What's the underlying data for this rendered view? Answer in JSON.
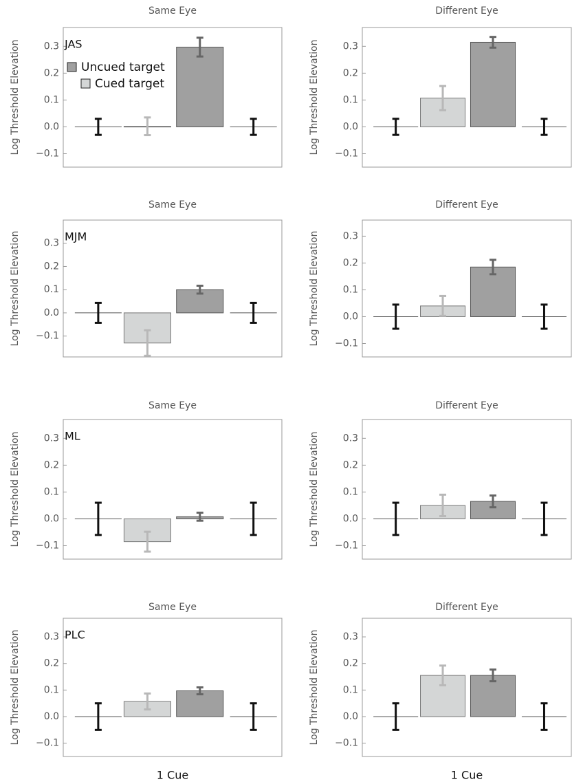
{
  "chart_data": [
    {
      "type": "bar",
      "title": "Same Eye",
      "ylabel": "Log Threshold Elevation",
      "annotation": "JAS",
      "legend": "upper left",
      "ylim": [
        -0.15,
        0.37
      ],
      "yticks": [
        {
          "value": -0.1,
          "label": "−0.1"
        },
        {
          "value": 0,
          "label": "0.0"
        },
        0.1,
        0.2,
        0.3
      ],
      "series": [
        {
          "name": "Cued target",
          "color": "#d4d6d6",
          "values": [
            0.002
          ],
          "errors": [
            0.033
          ]
        },
        {
          "name": "Uncued target",
          "color": "#a0a0a0",
          "values": [
            0.297
          ],
          "errors": [
            0.035
          ]
        }
      ],
      "reference": {
        "color": "#111111",
        "values": [
          0,
          0
        ],
        "errors": [
          0.03,
          0.03
        ]
      }
    },
    {
      "type": "bar",
      "title": "Different Eye",
      "ylabel": "Log Threshold Elevation",
      "ylim": [
        -0.15,
        0.37
      ],
      "yticks": [
        {
          "value": -0.1,
          "label": "−0.1"
        },
        {
          "value": 0,
          "label": "0.0"
        },
        0.1,
        0.2,
        0.3
      ],
      "series": [
        {
          "color": "#d4d6d6",
          "values": [
            0.107
          ],
          "errors": [
            0.045
          ]
        },
        {
          "color": "#a0a0a0",
          "values": [
            0.315
          ],
          "errors": [
            0.02
          ]
        }
      ],
      "reference": {
        "color": "#111111",
        "values": [
          0,
          0
        ],
        "errors": [
          0.03,
          0.03
        ]
      }
    },
    {
      "type": "bar",
      "title": "Same Eye",
      "ylabel": "Log Threshold Elevation",
      "annotation": "MJM",
      "ylim": [
        -0.19,
        0.4
      ],
      "yticks": [
        {
          "value": -0.1,
          "label": "−0.1"
        },
        {
          "value": 0,
          "label": "0.0"
        },
        0.1,
        0.2,
        0.3
      ],
      "series": [
        {
          "color": "#d4d6d6",
          "values": [
            -0.13
          ],
          "errors": [
            0.055
          ]
        },
        {
          "color": "#a0a0a0",
          "values": [
            0.1
          ],
          "errors": [
            0.017
          ]
        }
      ],
      "reference": {
        "color": "#111111",
        "values": [
          0,
          0
        ],
        "errors": [
          0.043,
          0.043
        ]
      }
    },
    {
      "type": "bar",
      "title": "Different Eye",
      "ylabel": "Log Threshold Elevation",
      "ylim": [
        -0.15,
        0.36
      ],
      "yticks": [
        {
          "value": -0.1,
          "label": "−0.1"
        },
        {
          "value": 0,
          "label": "0.0"
        },
        0.1,
        0.2,
        0.3
      ],
      "series": [
        {
          "color": "#d4d6d6",
          "values": [
            0.04
          ],
          "errors": [
            0.037
          ]
        },
        {
          "color": "#a0a0a0",
          "values": [
            0.185
          ],
          "errors": [
            0.027
          ]
        }
      ],
      "reference": {
        "color": "#111111",
        "values": [
          0,
          0
        ],
        "errors": [
          0.045,
          0.045
        ]
      }
    },
    {
      "type": "bar",
      "title": "Same Eye",
      "ylabel": "Log Threshold Elevation",
      "annotation": "ML",
      "ylim": [
        -0.15,
        0.37
      ],
      "yticks": [
        {
          "value": -0.1,
          "label": "−0.1"
        },
        {
          "value": 0,
          "label": "0.0"
        },
        0.1,
        0.2,
        0.3
      ],
      "series": [
        {
          "color": "#d4d6d6",
          "values": [
            -0.085
          ],
          "errors": [
            0.037
          ]
        },
        {
          "color": "#a0a0a0",
          "values": [
            0.008
          ],
          "errors": [
            0.015
          ]
        }
      ],
      "reference": {
        "color": "#111111",
        "values": [
          0,
          0
        ],
        "errors": [
          0.06,
          0.06
        ]
      }
    },
    {
      "type": "bar",
      "title": "Different Eye",
      "ylabel": "Log Threshold Elevation",
      "ylim": [
        -0.15,
        0.37
      ],
      "yticks": [
        {
          "value": -0.1,
          "label": "−0.1"
        },
        {
          "value": 0,
          "label": "0.0"
        },
        0.1,
        0.2,
        0.3
      ],
      "series": [
        {
          "color": "#d4d6d6",
          "values": [
            0.05
          ],
          "errors": [
            0.04
          ]
        },
        {
          "color": "#a0a0a0",
          "values": [
            0.065
          ],
          "errors": [
            0.022
          ]
        }
      ],
      "reference": {
        "color": "#111111",
        "values": [
          0,
          0
        ],
        "errors": [
          0.06,
          0.06
        ]
      }
    },
    {
      "type": "bar",
      "title": "Same Eye",
      "ylabel": "Log Threshold Elevation",
      "annotation": "PLC",
      "xlabel": "1 Cue",
      "ylim": [
        -0.15,
        0.37
      ],
      "yticks": [
        {
          "value": -0.1,
          "label": "−0.1"
        },
        {
          "value": 0,
          "label": "0.0"
        },
        0.1,
        0.2,
        0.3
      ],
      "series": [
        {
          "color": "#d4d6d6",
          "values": [
            0.057
          ],
          "errors": [
            0.03
          ]
        },
        {
          "color": "#a0a0a0",
          "values": [
            0.097
          ],
          "errors": [
            0.013
          ]
        }
      ],
      "reference": {
        "color": "#111111",
        "values": [
          0,
          0
        ],
        "errors": [
          0.05,
          0.05
        ]
      }
    },
    {
      "type": "bar",
      "title": "Different Eye",
      "ylabel": "Log Threshold Elevation",
      "xlabel": "1 Cue",
      "ylim": [
        -0.15,
        0.37
      ],
      "yticks": [
        {
          "value": -0.1,
          "label": "−0.1"
        },
        {
          "value": 0,
          "label": "0.0"
        },
        0.1,
        0.2,
        0.3
      ],
      "series": [
        {
          "color": "#d4d6d6",
          "values": [
            0.155
          ],
          "errors": [
            0.037
          ]
        },
        {
          "color": "#a0a0a0",
          "values": [
            0.155
          ],
          "errors": [
            0.022
          ]
        }
      ],
      "reference": {
        "color": "#111111",
        "values": [
          0,
          0
        ],
        "errors": [
          0.05,
          0.05
        ]
      }
    }
  ]
}
